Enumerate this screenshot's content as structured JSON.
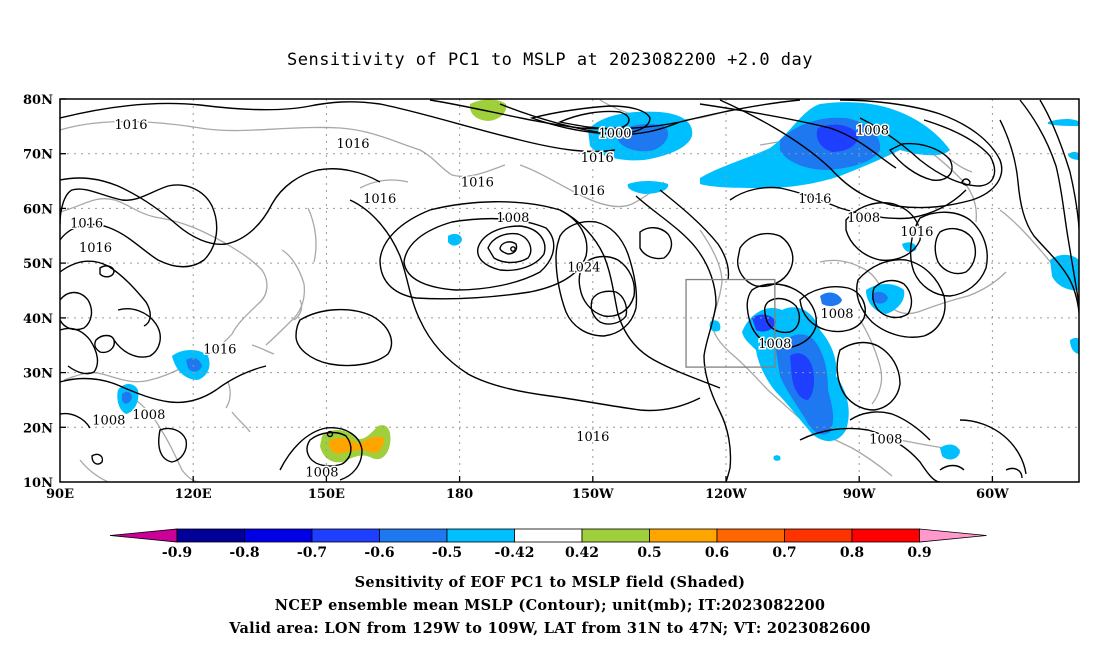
{
  "title": "Sensitivity of PC1 to MSLP at 2023082200 +2.0 day",
  "latitude_labels": [
    "80N",
    "70N",
    "60N",
    "50N",
    "40N",
    "30N",
    "20N",
    "10N"
  ],
  "longitude_labels": [
    "90E",
    "120E",
    "150E",
    "180",
    "150W",
    "120W",
    "90W",
    "60W"
  ],
  "contour_labels": [
    {
      "text": "1016",
      "lon": 106,
      "lat": 74.5
    },
    {
      "text": "1016",
      "lon": 156,
      "lat": 71
    },
    {
      "text": "1000",
      "lon": 215,
      "lat": 73
    },
    {
      "text": "1016",
      "lon": 211,
      "lat": 68.5
    },
    {
      "text": "1016",
      "lon": 184,
      "lat": 64
    },
    {
      "text": "1008",
      "lon": 273,
      "lat": 73.5
    },
    {
      "text": "1016",
      "lon": 209,
      "lat": 62.5
    },
    {
      "text": "1016",
      "lon": 96,
      "lat": 56.5
    },
    {
      "text": "1016",
      "lon": 98,
      "lat": 52
    },
    {
      "text": "1016",
      "lon": 162,
      "lat": 61
    },
    {
      "text": "1008",
      "lon": 192,
      "lat": 57.5
    },
    {
      "text": "1016",
      "lon": 260,
      "lat": 61
    },
    {
      "text": "1008",
      "lon": 271,
      "lat": 57.5
    },
    {
      "text": "1016",
      "lon": 283,
      "lat": 55
    },
    {
      "text": "1024",
      "lon": 208,
      "lat": 48.5
    },
    {
      "text": "1008",
      "lon": 265,
      "lat": 40
    },
    {
      "text": "1008",
      "lon": 251,
      "lat": 34.5
    },
    {
      "text": "1016",
      "lon": 126,
      "lat": 33.5
    },
    {
      "text": "1008",
      "lon": 110,
      "lat": 21.5
    },
    {
      "text": "1008",
      "lon": 101,
      "lat": 20.5
    },
    {
      "text": "1016",
      "lon": 210,
      "lat": 17.5
    },
    {
      "text": "1008",
      "lon": 276,
      "lat": 17
    },
    {
      "text": "1008",
      "lon": 149,
      "lat": 11
    }
  ],
  "valid_area": {
    "lon_min": -129,
    "lon_max": -109,
    "lat_min": 31,
    "lat_max": 47
  },
  "colorbar": {
    "labels": [
      "-0.9",
      "-0.8",
      "-0.7",
      "-0.6",
      "-0.5",
      "-0.42",
      "0.42",
      "0.5",
      "0.6",
      "0.7",
      "0.8",
      "0.9"
    ],
    "colors": [
      "#cc0099",
      "#000099",
      "#0000e6",
      "#1f3fff",
      "#1e78f0",
      "#00bfff",
      "#ffffff",
      "#a0cf3c",
      "#ffa500",
      "#ff6600",
      "#ff3300",
      "#ff0000",
      "#ff99cc"
    ]
  },
  "captions": {
    "line1": "Sensitivity of EOF PC1 to MSLP field (Shaded)",
    "line2": "NCEP ensemble mean MSLP (Contour); unit(mb); IT:2023082200",
    "line3": "Valid area: LON from 129W to 109W, LAT from 31N to 47N; VT: 2023082600"
  }
}
